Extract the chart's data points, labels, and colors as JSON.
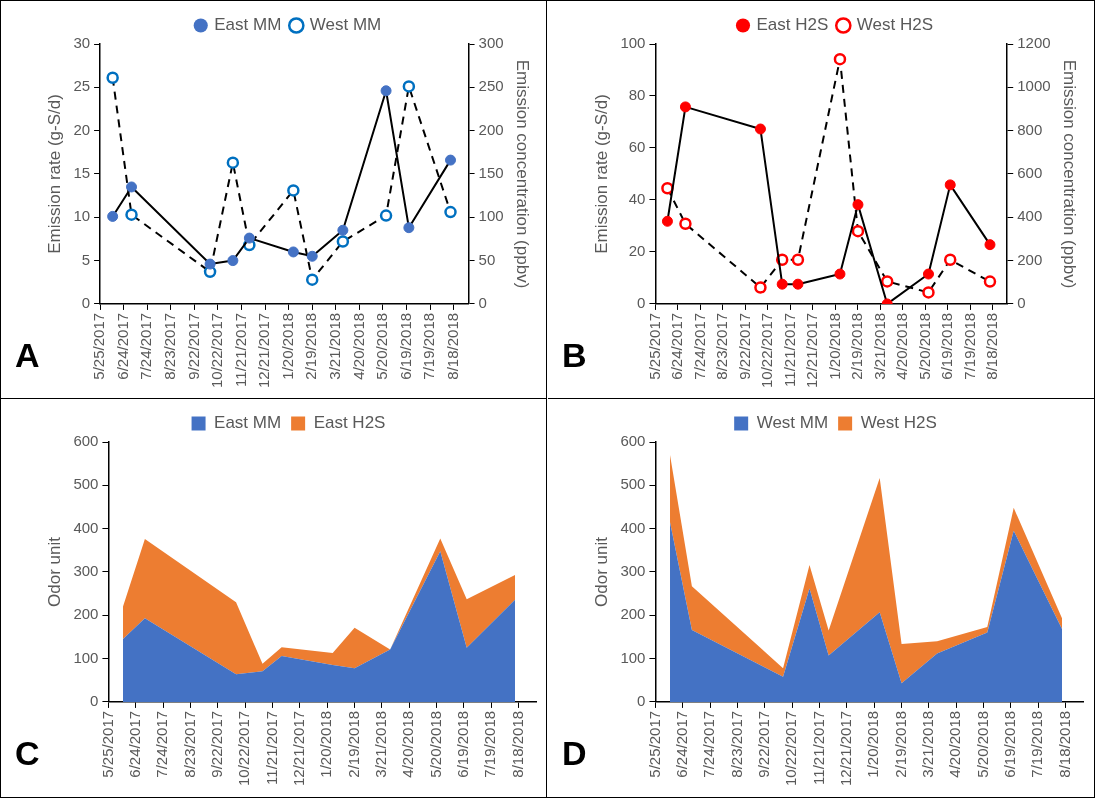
{
  "chart_data": [
    {
      "type": "line",
      "x": [
        "2017-06-10",
        "2017-07-04",
        "2017-10-12",
        "2017-11-10",
        "2017-12-01",
        "2018-01-26",
        "2018-02-19",
        "2018-03-30",
        "2018-05-24",
        "2018-06-22",
        "2018-08-14"
      ],
      "series": [
        {
          "name": "East MM",
          "color": "#4472c4",
          "line_style": "solid",
          "values": [
            10.1,
            13.5,
            4.6,
            5.0,
            7.6,
            6.0,
            5.5,
            8.5,
            24.6,
            8.8,
            16.6
          ]
        },
        {
          "name": "West MM",
          "color": "#0070c0",
          "line_style": "dashed",
          "axis": "y2",
          "values": [
            261,
            103,
            37,
            163,
            68,
            131,
            28,
            72,
            102,
            251,
            106
          ]
        }
      ],
      "ylabel": "Emission rate (g-S/d)",
      "y2label": "Emission concentration (ppbv)",
      "ylim": [
        0,
        30
      ],
      "yticks": [
        0,
        5,
        10,
        15,
        20,
        25,
        30
      ],
      "y2lim": [
        0,
        300
      ],
      "y2ticks": [
        0,
        50,
        100,
        150,
        200,
        250,
        300
      ],
      "xlim": [
        "2017-05-25",
        "2018-09-06"
      ],
      "xticks": [
        {
          "value": "2017-05-25",
          "label": "5/25/2017"
        },
        {
          "value": "2017-06-24",
          "label": "6/24/2017"
        },
        {
          "value": "2017-07-24",
          "label": "7/24/2017"
        },
        {
          "value": "2017-08-23",
          "label": "8/23/2017"
        },
        {
          "value": "2017-09-22",
          "label": "9/22/2017"
        },
        {
          "value": "2017-10-22",
          "label": "10/22/2017"
        },
        {
          "value": "2017-11-21",
          "label": "11/21/2017"
        },
        {
          "value": "2017-12-21",
          "label": "12/21/2017"
        },
        {
          "value": "2018-01-20",
          "label": "1/20/2018"
        },
        {
          "value": "2018-02-19",
          "label": "2/19/2018"
        },
        {
          "value": "2018-03-21",
          "label": "3/21/2018"
        },
        {
          "value": "2018-04-20",
          "label": "4/20/2018"
        },
        {
          "value": "2018-05-20",
          "label": "5/20/2018"
        },
        {
          "value": "2018-06-19",
          "label": "6/19/2018"
        },
        {
          "value": "2018-07-19",
          "label": "7/19/2018"
        },
        {
          "value": "2018-08-18",
          "label": "8/18/2018"
        }
      ],
      "legend": "top",
      "marker": "circle",
      "annotations": [
        "A"
      ]
    },
    {
      "type": "line",
      "x": [
        "2017-06-10",
        "2017-07-04",
        "2017-10-12",
        "2017-11-10",
        "2017-12-01",
        "2018-01-26",
        "2018-02-19",
        "2018-03-30",
        "2018-05-24",
        "2018-06-22",
        "2018-08-14"
      ],
      "series": [
        {
          "name": "East H2S",
          "color": "#ff0000",
          "line_style": "solid",
          "values": [
            31.8,
            75.8,
            67.3,
            7.6,
            7.6,
            11.5,
            38.2,
            0,
            11.5,
            45.8,
            22.8
          ]
        },
        {
          "name": "West H2S",
          "color": "#ff0000",
          "line_style": "dashed",
          "axis": "y2",
          "values": [
            534,
            370,
            76,
            204,
            204,
            1130,
            336,
            104,
            53,
            204,
            103
          ]
        }
      ],
      "ylabel": "Emission rate (g-S/d)",
      "y2label": "Emission concentration (ppbv)",
      "ylim": [
        0,
        100
      ],
      "yticks": [
        0,
        20,
        40,
        60,
        80,
        100
      ],
      "y2lim": [
        0,
        1200
      ],
      "y2ticks": [
        0,
        200,
        400,
        600,
        800,
        1000,
        1200
      ],
      "xlim": [
        "2017-05-25",
        "2018-09-06"
      ],
      "xticks": [
        {
          "value": "2017-05-25",
          "label": "5/25/2017"
        },
        {
          "value": "2017-06-24",
          "label": "6/24/2017"
        },
        {
          "value": "2017-07-24",
          "label": "7/24/2017"
        },
        {
          "value": "2017-08-23",
          "label": "8/23/2017"
        },
        {
          "value": "2017-09-22",
          "label": "9/22/2017"
        },
        {
          "value": "2017-10-22",
          "label": "10/22/2017"
        },
        {
          "value": "2017-11-21",
          "label": "11/21/2017"
        },
        {
          "value": "2017-12-21",
          "label": "12/21/2017"
        },
        {
          "value": "2018-01-20",
          "label": "1/20/2018"
        },
        {
          "value": "2018-02-19",
          "label": "2/19/2018"
        },
        {
          "value": "2018-03-21",
          "label": "3/21/2018"
        },
        {
          "value": "2018-04-20",
          "label": "4/20/2018"
        },
        {
          "value": "2018-05-20",
          "label": "5/20/2018"
        },
        {
          "value": "2018-06-19",
          "label": "6/19/2018"
        },
        {
          "value": "2018-07-19",
          "label": "7/19/2018"
        },
        {
          "value": "2018-08-18",
          "label": "8/18/2018"
        }
      ],
      "legend": "top",
      "marker": "circle",
      "annotations": [
        "B"
      ]
    },
    {
      "type": "area",
      "stacked": true,
      "x": [
        "2017-06-10",
        "2017-07-04",
        "2017-10-12",
        "2017-11-10",
        "2017-12-01",
        "2018-01-26",
        "2018-02-19",
        "2018-03-30",
        "2018-05-24",
        "2018-06-22",
        "2018-08-14"
      ],
      "series": [
        {
          "name": "East MM",
          "color": "#4472c4",
          "values": [
            145,
            193,
            64,
            71,
            106,
            85,
            78,
            121,
            348,
            125,
            236
          ]
        },
        {
          "name": "East H2S",
          "color": "#ed7d31",
          "values": [
            75,
            183,
            166,
            17,
            20,
            28,
            93,
            0,
            29,
            112,
            57
          ]
        }
      ],
      "ylabel": "Odor unit",
      "ylim": [
        0,
        600
      ],
      "yticks": [
        0,
        100,
        200,
        300,
        400,
        500,
        600
      ],
      "xlim": [
        "2017-05-25",
        "2018-09-06"
      ],
      "xticks": [
        {
          "value": "2017-05-25",
          "label": "5/25/2017"
        },
        {
          "value": "2017-06-24",
          "label": "6/24/2017"
        },
        {
          "value": "2017-07-24",
          "label": "7/24/2017"
        },
        {
          "value": "2017-08-23",
          "label": "8/23/2017"
        },
        {
          "value": "2017-09-22",
          "label": "9/22/2017"
        },
        {
          "value": "2017-10-22",
          "label": "10/22/2017"
        },
        {
          "value": "2017-11-21",
          "label": "11/21/2017"
        },
        {
          "value": "2017-12-21",
          "label": "12/21/2017"
        },
        {
          "value": "2018-01-20",
          "label": "1/20/2018"
        },
        {
          "value": "2018-02-19",
          "label": "2/19/2018"
        },
        {
          "value": "2018-03-21",
          "label": "3/21/2018"
        },
        {
          "value": "2018-04-20",
          "label": "4/20/2018"
        },
        {
          "value": "2018-05-20",
          "label": "5/20/2018"
        },
        {
          "value": "2018-06-19",
          "label": "6/19/2018"
        },
        {
          "value": "2018-07-19",
          "label": "7/19/2018"
        },
        {
          "value": "2018-08-18",
          "label": "8/18/2018"
        }
      ],
      "legend": "top",
      "annotations": [
        "C"
      ]
    },
    {
      "type": "area",
      "stacked": true,
      "x": [
        "2017-06-10",
        "2017-07-04",
        "2017-10-12",
        "2017-11-10",
        "2017-12-01",
        "2018-01-26",
        "2018-02-19",
        "2018-03-30",
        "2018-05-24",
        "2018-06-22",
        "2018-08-14"
      ],
      "series": [
        {
          "name": "West MM",
          "color": "#4472c4",
          "values": [
            415,
            166,
            58,
            262,
            107,
            207,
            43,
            112,
            160,
            395,
            168
          ]
        },
        {
          "name": "West H2S",
          "color": "#ed7d31",
          "values": [
            155,
            101,
            20,
            54,
            58,
            310,
            91,
            28,
            13,
            53,
            25
          ]
        }
      ],
      "ylabel": "Odor unit",
      "ylim": [
        0,
        600
      ],
      "yticks": [
        0,
        100,
        200,
        300,
        400,
        500,
        600
      ],
      "xlim": [
        "2017-05-25",
        "2018-09-06"
      ],
      "xticks": [
        {
          "value": "2017-05-25",
          "label": "5/25/2017"
        },
        {
          "value": "2017-06-24",
          "label": "6/24/2017"
        },
        {
          "value": "2017-07-24",
          "label": "7/24/2017"
        },
        {
          "value": "2017-08-23",
          "label": "8/23/2017"
        },
        {
          "value": "2017-09-22",
          "label": "9/22/2017"
        },
        {
          "value": "2017-10-22",
          "label": "10/22/2017"
        },
        {
          "value": "2017-11-21",
          "label": "11/21/2017"
        },
        {
          "value": "2017-12-21",
          "label": "12/21/2017"
        },
        {
          "value": "2018-01-20",
          "label": "1/20/2018"
        },
        {
          "value": "2018-02-19",
          "label": "2/19/2018"
        },
        {
          "value": "2018-03-21",
          "label": "3/21/2018"
        },
        {
          "value": "2018-04-20",
          "label": "4/20/2018"
        },
        {
          "value": "2018-05-20",
          "label": "5/20/2018"
        },
        {
          "value": "2018-06-19",
          "label": "6/19/2018"
        },
        {
          "value": "2018-07-19",
          "label": "7/19/2018"
        },
        {
          "value": "2018-08-18",
          "label": "8/18/2018"
        }
      ],
      "legend": "top",
      "annotations": [
        "D"
      ]
    }
  ]
}
